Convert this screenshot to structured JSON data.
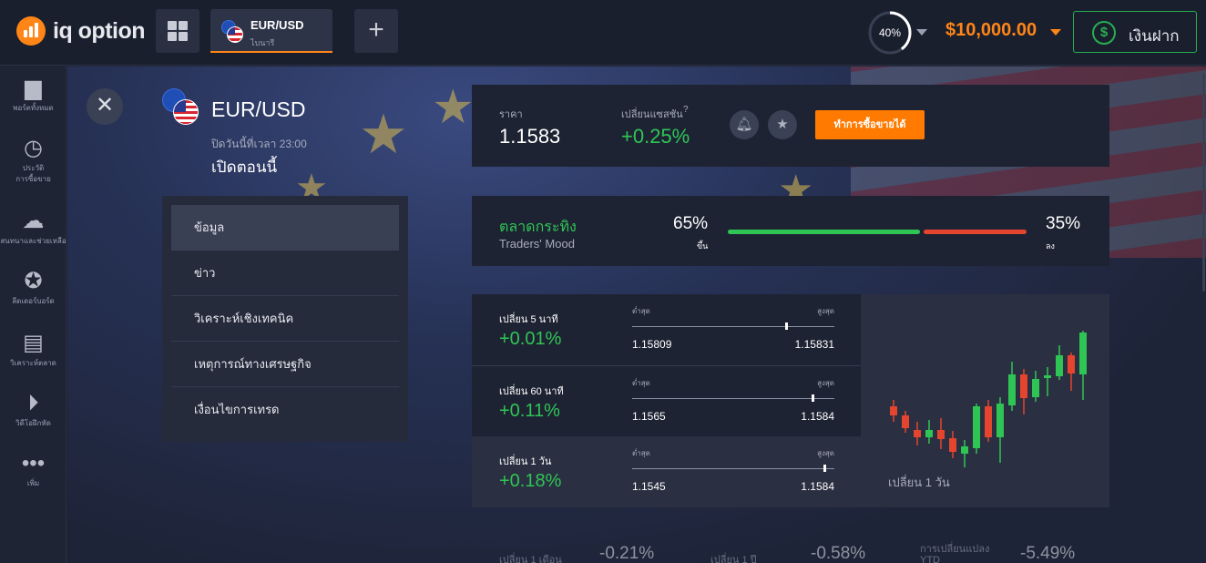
{
  "header": {
    "logo_text": "iq option",
    "asset_tab": {
      "name": "EUR/USD",
      "type": "ไบนารี"
    },
    "progress_label": "40%",
    "progress_value": 0.4,
    "balance": "$10,000.00",
    "deposit_label": "เงินฝาก",
    "plus_label": "+"
  },
  "sidebar": {
    "items": [
      {
        "icon": "briefcase-icon",
        "label": "พอร์ตทั้งหมด"
      },
      {
        "icon": "history-icon",
        "label": "ประวัติ\nการซื้อขาย"
      },
      {
        "icon": "chat-icon",
        "label": "สนทนาและช่วยเหลือ"
      },
      {
        "icon": "award-icon",
        "label": "ลีดเดอร์บอร์ด"
      },
      {
        "icon": "news-icon",
        "label": "วิเคราะห์ตลาด"
      },
      {
        "icon": "play-icon",
        "label": "วิดีโอฝึกหัด"
      },
      {
        "icon": "more-icon",
        "label": "เพิ่ม"
      }
    ]
  },
  "asset_info": {
    "title": "EUR/USD",
    "close_time": "ปิดวันนี้ที่เวลา 23:00",
    "status": "เปิดตอนนี้"
  },
  "menu": {
    "items": [
      "ข้อมูล",
      "ข่าว",
      "วิเคราะห์เชิงเทคนิค",
      "เหตุการณ์ทางเศรษฐกิจ",
      "เงื่อนไขการเทรด"
    ]
  },
  "price_panel": {
    "price_label": "ราคา",
    "price": "1.1583",
    "change_label": "เปลี่ยนแซสชัน",
    "change": "+0.25%",
    "trade_button": "ทำการซื้อขายได้"
  },
  "mood": {
    "title": "ตลาดกระทิง",
    "subtitle": "Traders' Mood",
    "up_pct": "65%",
    "up_label": "ขึ้น",
    "down_pct": "35%",
    "down_label": "ลง",
    "up_fraction": 0.65
  },
  "changes": [
    {
      "label": "เปลี่ยน 5 นาที",
      "value": "+0.01%",
      "low_label": "ต่ำสุด",
      "high_label": "สูงสุด",
      "low": "1.15809",
      "high": "1.15831",
      "position": 0.76
    },
    {
      "label": "เปลี่ยน 60 นาที",
      "value": "+0.11%",
      "low_label": "ต่ำสุด",
      "high_label": "สูงสุด",
      "low": "1.1565",
      "high": "1.1584",
      "position": 0.89
    },
    {
      "label": "เปลี่ยน 1 วัน",
      "value": "+0.18%",
      "low_label": "ต่ำสุด",
      "high_label": "สูงสุด",
      "low": "1.1545",
      "high": "1.1584",
      "position": 0.95
    }
  ],
  "mini_chart": {
    "label": "เปลี่ยน 1 วัน"
  },
  "bottom": [
    {
      "label": "เปลี่ยน 1 เดือน",
      "value": "-0.21%"
    },
    {
      "label": "เปลี่ยน 1 ปี",
      "value": "-0.58%"
    },
    {
      "label": "การเปลี่ยนแปลง YTD",
      "value": "-5.49%"
    }
  ],
  "colors": {
    "accent": "#ff8516",
    "green": "#2fc555",
    "red": "#e5452e"
  }
}
